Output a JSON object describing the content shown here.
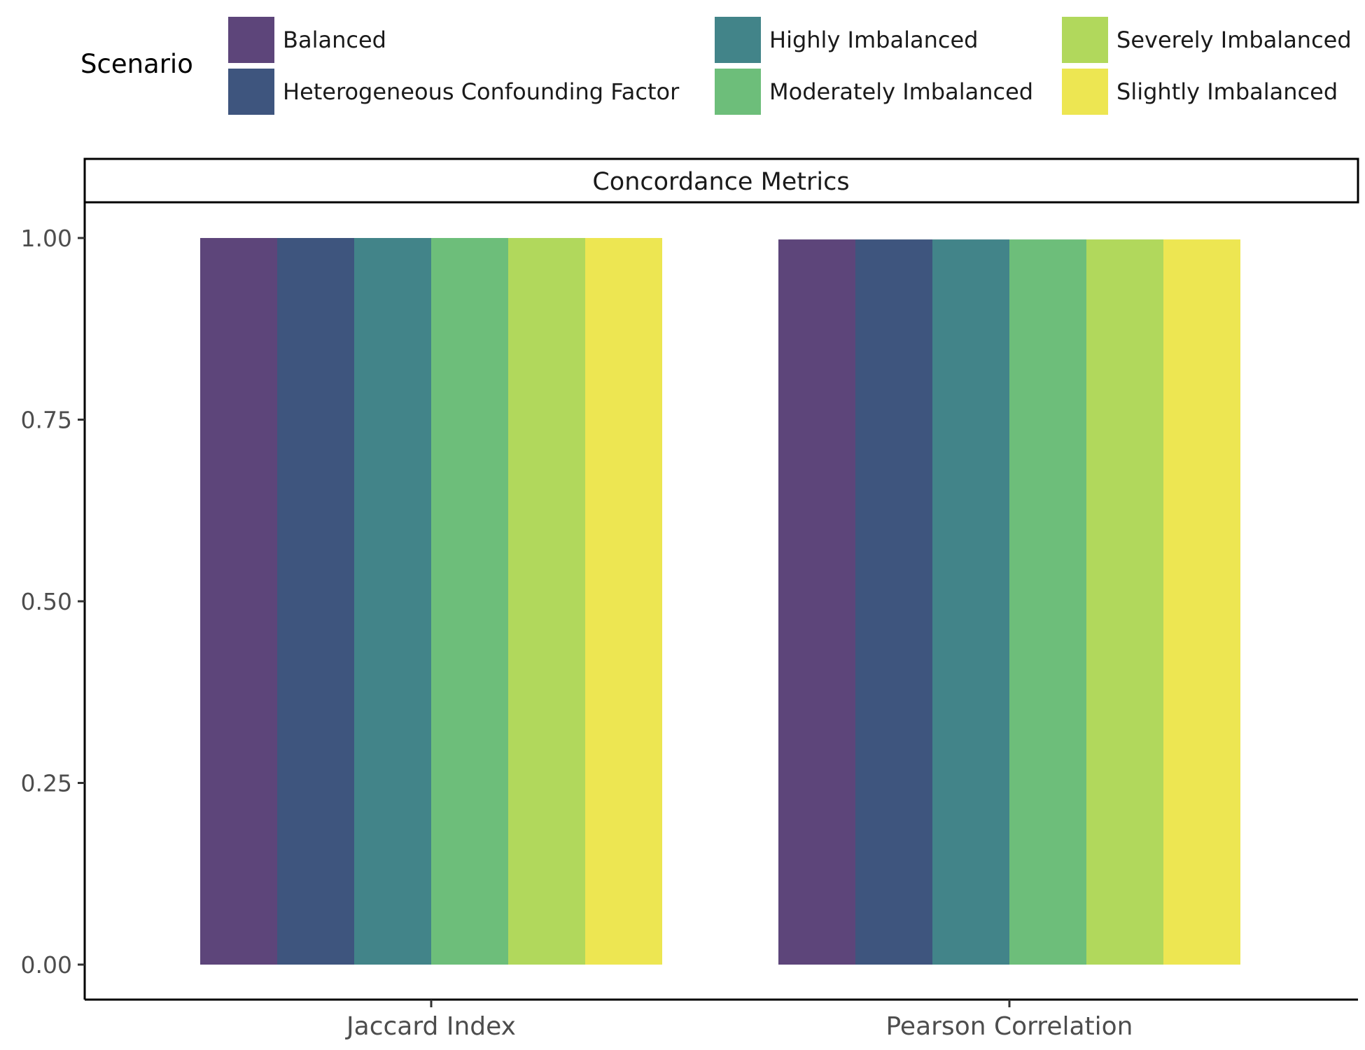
{
  "chart_data": {
    "type": "bar",
    "title": "",
    "facet_label": "Concordance Metrics",
    "xlabel": "",
    "ylabel": "",
    "categories": [
      "Jaccard Index",
      "Pearson Correlation"
    ],
    "ylim": [
      0,
      1.05
    ],
    "yticks": [
      0,
      0.25,
      0.5,
      0.75,
      1.0
    ],
    "ytick_labels": [
      "0.00",
      "0.25",
      "0.50",
      "0.75",
      "1.00"
    ],
    "grid": false,
    "legend": {
      "title": "Scenario",
      "position": "top",
      "columns": 3
    },
    "series": [
      {
        "name": "Balanced",
        "color": "#5d457a",
        "values": [
          1.0,
          0.998
        ]
      },
      {
        "name": "Heterogeneous Confounding Factor",
        "color": "#3e557e",
        "values": [
          1.0,
          0.998
        ]
      },
      {
        "name": "Highly Imbalanced",
        "color": "#428489",
        "values": [
          1.0,
          0.998
        ]
      },
      {
        "name": "Moderately Imbalanced",
        "color": "#6dbe7a",
        "values": [
          1.0,
          0.998
        ]
      },
      {
        "name": "Severely Imbalanced",
        "color": "#b1d85c",
        "values": [
          1.0,
          0.998
        ]
      },
      {
        "name": "Slightly Imbalanced",
        "color": "#ede652",
        "values": [
          1.0,
          0.998
        ]
      }
    ]
  }
}
